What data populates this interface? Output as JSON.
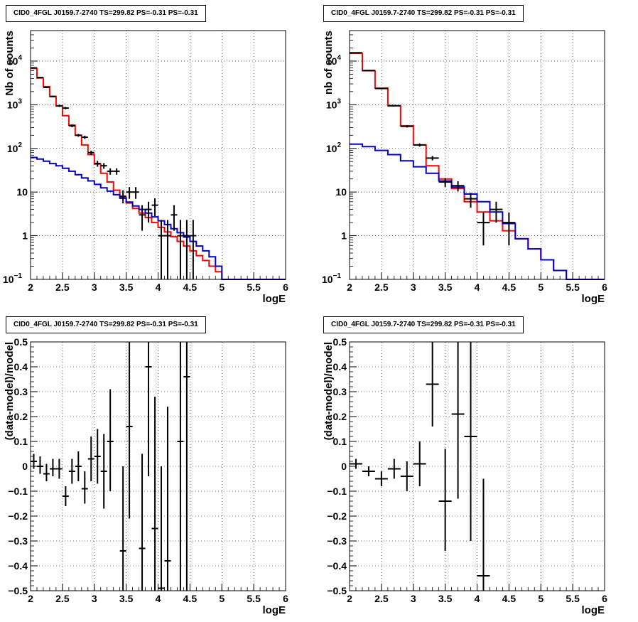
{
  "colors": {
    "data": "#000000",
    "total_model": "#ff0000",
    "source_model": "#0000cc",
    "grid": "#000000"
  },
  "chart_data": [
    {
      "type": "line",
      "title": "CID0_4FGL J0159.7-2740 TS=299.82 PS=-0.31 PS=-0.31",
      "xlabel": "logE",
      "ylabel": "Nb of counts",
      "log_y": true,
      "grid": true,
      "xlim": [
        2,
        6
      ],
      "ylim": [
        0.1,
        50000
      ],
      "xticks": [
        "2",
        "2.5",
        "3",
        "3.5",
        "4",
        "4.5",
        "5",
        "5.5",
        "6"
      ],
      "yticks": [
        {
          "value": 0.1,
          "label": "10",
          "sup": "−1"
        },
        {
          "value": 1,
          "label": "1",
          "sup": ""
        },
        {
          "value": 10,
          "label": "10",
          "sup": ""
        },
        {
          "value": 100,
          "label": "10",
          "sup": "2"
        },
        {
          "value": 1000,
          "label": "10",
          "sup": "3"
        },
        {
          "value": 10000,
          "label": "10",
          "sup": "4"
        }
      ],
      "bin_edges": [
        2.0,
        2.1,
        2.2,
        2.3,
        2.4,
        2.5,
        2.6,
        2.7,
        2.8,
        2.9,
        3.0,
        3.1,
        3.2,
        3.3,
        3.4,
        3.5,
        3.6,
        3.7,
        3.8,
        3.9,
        4.0,
        4.1,
        4.2,
        4.3,
        4.4,
        4.5,
        4.6,
        4.7,
        4.8,
        4.9,
        5.0,
        5.1,
        5.2,
        5.3,
        5.4,
        5.5,
        5.6,
        5.7,
        5.8,
        5.9,
        6.0
      ],
      "series": [
        {
          "name": "",
          "kind": "step",
          "color_key": "total_model",
          "values": [
            6800,
            4100,
            2600,
            1550,
            950,
            560,
            340,
            200,
            120,
            72,
            44,
            27,
            17,
            11,
            7.6,
            5.6,
            4.2,
            3.3,
            2.6,
            2.0,
            1.55,
            1.22,
            0.95,
            0.74,
            0.58,
            0.45,
            0.35,
            0.27,
            0.2,
            0.15,
            0.1,
            0.1,
            0.1,
            0.1,
            0.1,
            0.1,
            0.1,
            0.1,
            0.1,
            0.1
          ]
        },
        {
          "name": "",
          "kind": "step",
          "color_key": "source_model",
          "values": [
            62,
            57,
            51,
            45,
            40,
            35,
            30,
            25,
            21,
            18,
            15,
            12.5,
            10.5,
            8.7,
            7.2,
            5.9,
            4.8,
            4.0,
            3.3,
            2.7,
            2.2,
            1.8,
            1.45,
            1.17,
            0.93,
            0.74,
            0.58,
            0.45,
            0.33,
            0.2,
            0.1,
            0.1,
            0.1,
            0.1,
            0.1,
            0.1,
            0.1,
            0.1,
            0.1,
            0.1
          ]
        }
      ],
      "points": [
        {
          "x": 2.05,
          "y": 7000,
          "xerr": 0.05,
          "ylo": 6800,
          "yhi": 7200
        },
        {
          "x": 2.15,
          "y": 4200,
          "xerr": 0.05,
          "ylo": 4050,
          "yhi": 4350
        },
        {
          "x": 2.25,
          "y": 2500,
          "xerr": 0.05,
          "ylo": 2400,
          "yhi": 2600
        },
        {
          "x": 2.35,
          "y": 1550,
          "xerr": 0.05,
          "ylo": 1480,
          "yhi": 1620
        },
        {
          "x": 2.45,
          "y": 940,
          "xerr": 0.05,
          "ylo": 890,
          "yhi": 990
        },
        {
          "x": 2.55,
          "y": 840,
          "xerr": 0.05,
          "ylo": 790,
          "yhi": 890
        },
        {
          "x": 2.65,
          "y": 330,
          "xerr": 0.05,
          "ylo": 305,
          "yhi": 355
        },
        {
          "x": 2.75,
          "y": 200,
          "xerr": 0.05,
          "ylo": 185,
          "yhi": 215
        },
        {
          "x": 2.85,
          "y": 180,
          "xerr": 0.05,
          "ylo": 165,
          "yhi": 195
        },
        {
          "x": 2.95,
          "y": 80,
          "xerr": 0.05,
          "ylo": 71,
          "yhi": 89
        },
        {
          "x": 3.05,
          "y": 45,
          "xerr": 0.05,
          "ylo": 38,
          "yhi": 52
        },
        {
          "x": 3.15,
          "y": 40,
          "xerr": 0.05,
          "ylo": 34,
          "yhi": 46
        },
        {
          "x": 3.25,
          "y": 30,
          "xerr": 0.05,
          "ylo": 25,
          "yhi": 35
        },
        {
          "x": 3.35,
          "y": 30,
          "xerr": 0.05,
          "ylo": 25,
          "yhi": 35
        },
        {
          "x": 3.45,
          "y": 8,
          "xerr": 0.05,
          "ylo": 5.5,
          "yhi": 11
        },
        {
          "x": 3.55,
          "y": 10,
          "xerr": 0.05,
          "ylo": 7,
          "yhi": 13
        },
        {
          "x": 3.65,
          "y": 10,
          "xerr": 0.05,
          "ylo": 7,
          "yhi": 13
        },
        {
          "x": 3.75,
          "y": 3,
          "xerr": 0.05,
          "ylo": 1.3,
          "yhi": 5
        },
        {
          "x": 3.85,
          "y": 4,
          "xerr": 0.05,
          "ylo": 2,
          "yhi": 6
        },
        {
          "x": 3.95,
          "y": 5,
          "xerr": 0.05,
          "ylo": 2.8,
          "yhi": 7.2
        },
        {
          "x": 4.05,
          "y": 1,
          "xerr": 0.05,
          "ylo": 0.1,
          "yhi": 2.3
        },
        {
          "x": 4.15,
          "y": 1,
          "xerr": 0.05,
          "ylo": 0.1,
          "yhi": 2.3
        },
        {
          "x": 4.25,
          "y": 3,
          "xerr": 0.05,
          "ylo": 1.3,
          "yhi": 5
        },
        {
          "x": 4.35,
          "y": 1,
          "xerr": 0.05,
          "ylo": 0.1,
          "yhi": 2.3
        },
        {
          "x": 4.45,
          "y": 1,
          "xerr": 0.05,
          "ylo": 0.1,
          "yhi": 2.3
        },
        {
          "x": 4.55,
          "y": 1,
          "xerr": 0.05,
          "ylo": 0.1,
          "yhi": 2.3
        }
      ]
    },
    {
      "type": "line",
      "title": "CID0_4FGL J0159.7-2740 TS=299.82 PS=-0.31 PS=-0.31",
      "xlabel": "logE",
      "ylabel": "nb of counts",
      "log_y": true,
      "grid": true,
      "xlim": [
        2,
        6
      ],
      "ylim": [
        0.1,
        50000
      ],
      "xticks": [
        "2",
        "2.5",
        "3",
        "3.5",
        "4",
        "4.5",
        "5",
        "5.5",
        "6"
      ],
      "yticks": [
        {
          "value": 0.1,
          "label": "10",
          "sup": "−1"
        },
        {
          "value": 1,
          "label": "1",
          "sup": ""
        },
        {
          "value": 10,
          "label": "10",
          "sup": ""
        },
        {
          "value": 100,
          "label": "10",
          "sup": "2"
        },
        {
          "value": 1000,
          "label": "10",
          "sup": "3"
        },
        {
          "value": 10000,
          "label": "10",
          "sup": "4"
        }
      ],
      "bin_edges": [
        2.0,
        2.2,
        2.4,
        2.6,
        2.8,
        3.0,
        3.2,
        3.4,
        3.6,
        3.8,
        4.0,
        4.2,
        4.4,
        4.6,
        4.8,
        5.0,
        5.2,
        5.4,
        5.6,
        5.8,
        6.0
      ],
      "series": [
        {
          "name": "",
          "kind": "step",
          "color_key": "total_model",
          "values": [
            15000,
            6000,
            2400,
            950,
            330,
            120,
            40,
            20,
            12,
            6,
            3.5,
            2.2,
            1.3,
            0.85,
            0.5,
            0.28,
            0.16,
            0.1,
            0.1,
            0.1
          ]
        },
        {
          "name": "",
          "kind": "step",
          "color_key": "source_model",
          "values": [
            125,
            110,
            90,
            72,
            52,
            38,
            27,
            18,
            13,
            9,
            6,
            3.5,
            1.9,
            0.85,
            0.5,
            0.28,
            0.16,
            0.1,
            0.1,
            0.1
          ]
        }
      ],
      "points": [
        {
          "x": 2.1,
          "y": 15500,
          "xerr": 0.1,
          "ylo": 15200,
          "yhi": 15800
        },
        {
          "x": 2.3,
          "y": 6100,
          "xerr": 0.1,
          "ylo": 5950,
          "yhi": 6250
        },
        {
          "x": 2.5,
          "y": 2350,
          "xerr": 0.1,
          "ylo": 2250,
          "yhi": 2450
        },
        {
          "x": 2.7,
          "y": 950,
          "xerr": 0.1,
          "ylo": 905,
          "yhi": 995
        },
        {
          "x": 2.9,
          "y": 320,
          "xerr": 0.1,
          "ylo": 300,
          "yhi": 340
        },
        {
          "x": 3.1,
          "y": 120,
          "xerr": 0.1,
          "ylo": 110,
          "yhi": 130
        },
        {
          "x": 3.3,
          "y": 60,
          "xerr": 0.1,
          "ylo": 53,
          "yhi": 67
        },
        {
          "x": 3.5,
          "y": 17,
          "xerr": 0.1,
          "ylo": 13,
          "yhi": 21
        },
        {
          "x": 3.7,
          "y": 14,
          "xerr": 0.1,
          "ylo": 10.3,
          "yhi": 17.7
        },
        {
          "x": 3.9,
          "y": 7,
          "xerr": 0.1,
          "ylo": 4.4,
          "yhi": 9.6
        },
        {
          "x": 4.1,
          "y": 2,
          "xerr": 0.1,
          "ylo": 0.6,
          "yhi": 3.4
        },
        {
          "x": 4.3,
          "y": 4,
          "xerr": 0.1,
          "ylo": 2,
          "yhi": 6
        },
        {
          "x": 4.5,
          "y": 2,
          "xerr": 0.1,
          "ylo": 0.6,
          "yhi": 3.4
        }
      ]
    },
    {
      "type": "scatter",
      "title": "CID0_4FGL J0159.7-2740 TS=299.82 PS=-0.31 PS=-0.31",
      "xlabel": "logE",
      "ylabel": "(data-model)/model",
      "log_y": false,
      "grid": true,
      "xlim": [
        2,
        6
      ],
      "ylim": [
        -0.5,
        0.5
      ],
      "xticks": [
        "2",
        "2.5",
        "3",
        "3.5",
        "4",
        "4.5",
        "5",
        "5.5",
        "6"
      ],
      "yticks": [
        {
          "value": -0.5,
          "label": "−0.5",
          "sup": ""
        },
        {
          "value": -0.4,
          "label": "−0.4",
          "sup": ""
        },
        {
          "value": -0.3,
          "label": "−0.3",
          "sup": ""
        },
        {
          "value": -0.2,
          "label": "−0.2",
          "sup": ""
        },
        {
          "value": -0.1,
          "label": "−0.1",
          "sup": ""
        },
        {
          "value": 0,
          "label": "0",
          "sup": ""
        },
        {
          "value": 0.1,
          "label": "0.1",
          "sup": ""
        },
        {
          "value": 0.2,
          "label": "0.2",
          "sup": ""
        },
        {
          "value": 0.3,
          "label": "0.3",
          "sup": ""
        },
        {
          "value": 0.4,
          "label": "0.4",
          "sup": ""
        },
        {
          "value": 0.5,
          "label": "0.5",
          "sup": ""
        }
      ],
      "series": [],
      "points": [
        {
          "x": 2.05,
          "y": 0.02,
          "xerr": 0.05,
          "ylo": -0.01,
          "yhi": 0.05
        },
        {
          "x": 2.15,
          "y": 0.0,
          "xerr": 0.05,
          "ylo": -0.03,
          "yhi": 0.04
        },
        {
          "x": 2.25,
          "y": -0.03,
          "xerr": 0.05,
          "ylo": -0.06,
          "yhi": 0.01
        },
        {
          "x": 2.35,
          "y": -0.01,
          "xerr": 0.05,
          "ylo": -0.04,
          "yhi": 0.03
        },
        {
          "x": 2.45,
          "y": -0.01,
          "xerr": 0.05,
          "ylo": -0.05,
          "yhi": 0.03
        },
        {
          "x": 2.55,
          "y": -0.12,
          "xerr": 0.05,
          "ylo": -0.16,
          "yhi": -0.08
        },
        {
          "x": 2.65,
          "y": -0.02,
          "xerr": 0.05,
          "ylo": -0.07,
          "yhi": 0.03
        },
        {
          "x": 2.75,
          "y": 0.0,
          "xerr": 0.05,
          "ylo": -0.06,
          "yhi": 0.06
        },
        {
          "x": 2.85,
          "y": -0.09,
          "xerr": 0.05,
          "ylo": -0.15,
          "yhi": -0.02
        },
        {
          "x": 2.95,
          "y": 0.03,
          "xerr": 0.05,
          "ylo": -0.06,
          "yhi": 0.12
        },
        {
          "x": 3.05,
          "y": 0.04,
          "xerr": 0.05,
          "ylo": -0.07,
          "yhi": 0.15
        },
        {
          "x": 3.15,
          "y": -0.02,
          "xerr": 0.05,
          "ylo": -0.17,
          "yhi": 0.13
        },
        {
          "x": 3.25,
          "y": 0.1,
          "xerr": 0.05,
          "ylo": -0.1,
          "yhi": 0.31
        },
        {
          "x": 3.45,
          "y": -0.34,
          "xerr": 0.05,
          "ylo": -0.5,
          "yhi": 0.0
        },
        {
          "x": 3.55,
          "y": 0.16,
          "xerr": 0.05,
          "ylo": -0.21,
          "yhi": 0.5
        },
        {
          "x": 3.75,
          "y": -0.33,
          "xerr": 0.05,
          "ylo": -0.5,
          "yhi": 0.05
        },
        {
          "x": 3.85,
          "y": 0.4,
          "xerr": 0.05,
          "ylo": -0.04,
          "yhi": 0.5
        },
        {
          "x": 3.95,
          "y": -0.25,
          "xerr": 0.05,
          "ylo": -0.5,
          "yhi": 0.28
        },
        {
          "x": 4.05,
          "y": -0.49,
          "xerr": 0.05,
          "ylo": -0.5,
          "yhi": 0.0
        },
        {
          "x": 4.15,
          "y": -0.38,
          "xerr": 0.05,
          "ylo": -0.5,
          "yhi": 0.24
        },
        {
          "x": 4.35,
          "y": 0.1,
          "xerr": 0.05,
          "ylo": -0.5,
          "yhi": 0.5
        },
        {
          "x": 4.45,
          "y": 0.36,
          "xerr": 0.05,
          "ylo": -0.5,
          "yhi": 0.5
        }
      ]
    },
    {
      "type": "scatter",
      "title": "CID0_4FGL J0159.7-2740 TS=299.82 PS=-0.31 PS=-0.31",
      "xlabel": "logE",
      "ylabel": "(data-model)/model",
      "log_y": false,
      "grid": true,
      "xlim": [
        2,
        6
      ],
      "ylim": [
        -0.5,
        0.5
      ],
      "xticks": [
        "2",
        "2.5",
        "3",
        "3.5",
        "4",
        "4.5",
        "5",
        "5.5",
        "6"
      ],
      "yticks": [
        {
          "value": -0.5,
          "label": "−0.5",
          "sup": ""
        },
        {
          "value": -0.4,
          "label": "−0.4",
          "sup": ""
        },
        {
          "value": -0.3,
          "label": "−0.3",
          "sup": ""
        },
        {
          "value": -0.2,
          "label": "−0.2",
          "sup": ""
        },
        {
          "value": -0.1,
          "label": "−0.1",
          "sup": ""
        },
        {
          "value": 0,
          "label": "0",
          "sup": ""
        },
        {
          "value": 0.1,
          "label": "0.1",
          "sup": ""
        },
        {
          "value": 0.2,
          "label": "0.2",
          "sup": ""
        },
        {
          "value": 0.3,
          "label": "0.3",
          "sup": ""
        },
        {
          "value": 0.4,
          "label": "0.4",
          "sup": ""
        },
        {
          "value": 0.5,
          "label": "0.5",
          "sup": ""
        }
      ],
      "series": [],
      "points": [
        {
          "x": 2.1,
          "y": 0.01,
          "xerr": 0.1,
          "ylo": -0.01,
          "yhi": 0.03
        },
        {
          "x": 2.3,
          "y": -0.02,
          "xerr": 0.1,
          "ylo": -0.04,
          "yhi": 0.0
        },
        {
          "x": 2.5,
          "y": -0.05,
          "xerr": 0.1,
          "ylo": -0.08,
          "yhi": -0.02
        },
        {
          "x": 2.7,
          "y": -0.01,
          "xerr": 0.1,
          "ylo": -0.05,
          "yhi": 0.03
        },
        {
          "x": 2.9,
          "y": -0.04,
          "xerr": 0.1,
          "ylo": -0.1,
          "yhi": 0.02
        },
        {
          "x": 3.1,
          "y": 0.01,
          "xerr": 0.1,
          "ylo": -0.08,
          "yhi": 0.1
        },
        {
          "x": 3.3,
          "y": 0.33,
          "xerr": 0.1,
          "ylo": 0.16,
          "yhi": 0.5
        },
        {
          "x": 3.5,
          "y": -0.14,
          "xerr": 0.1,
          "ylo": -0.34,
          "yhi": 0.07
        },
        {
          "x": 3.7,
          "y": 0.21,
          "xerr": 0.1,
          "ylo": -0.13,
          "yhi": 0.5
        },
        {
          "x": 3.9,
          "y": 0.12,
          "xerr": 0.1,
          "ylo": -0.3,
          "yhi": 0.5
        },
        {
          "x": 4.1,
          "y": -0.44,
          "xerr": 0.1,
          "ylo": -0.5,
          "yhi": -0.05
        }
      ]
    }
  ]
}
